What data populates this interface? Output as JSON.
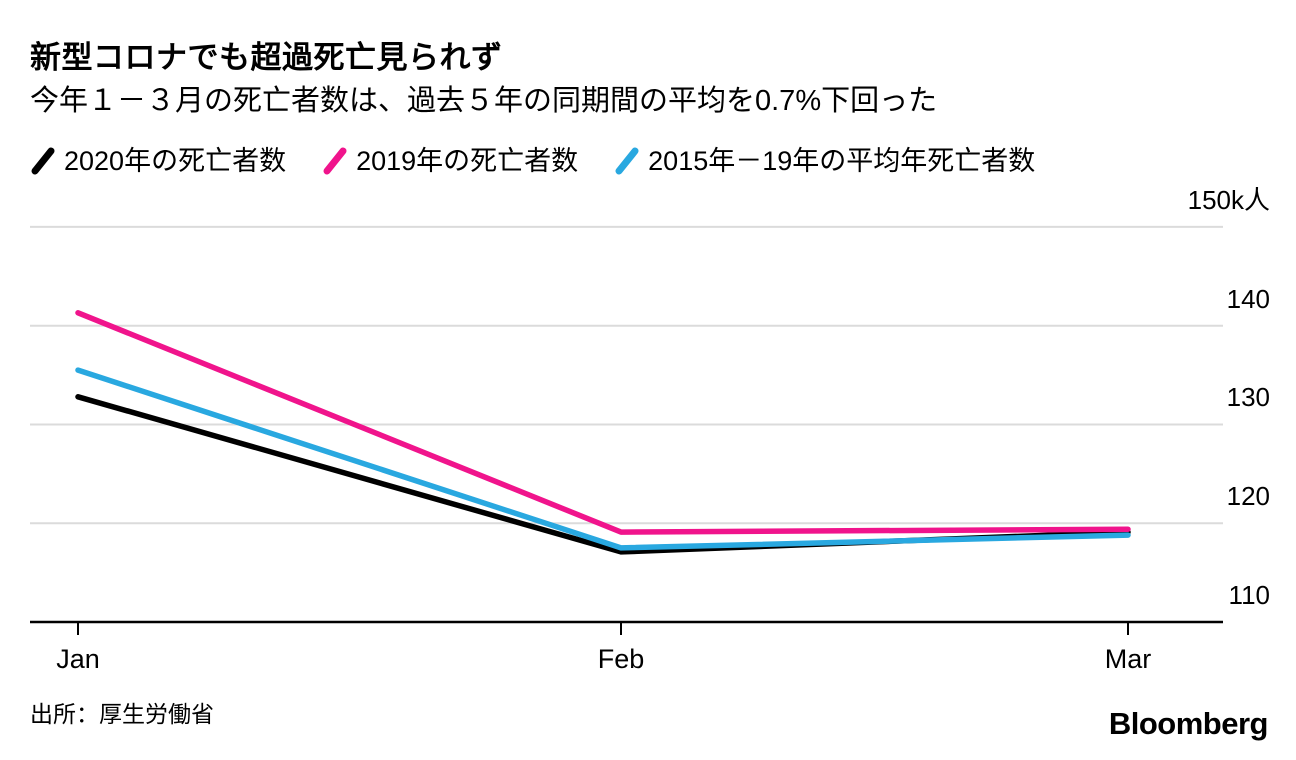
{
  "header": {
    "title": "新型コロナでも超過死亡見られず",
    "subtitle": "今年１－３月の死亡者数は、過去５年の同期間の平均を0.7%下回った"
  },
  "chart_data": {
    "type": "line",
    "title": "新型コロナでも超過死亡見られず",
    "subtitle": "今年１－３月の死亡者数は、過去５年の同期間の平均を0.7%下回った",
    "categories": [
      "Jan",
      "Feb",
      "Mar"
    ],
    "unit": "k人 (thousands of people)",
    "series": [
      {
        "name": "2020年の死亡者数",
        "color": "#000000",
        "values": [
          132.8,
          117.1,
          119.1
        ]
      },
      {
        "name": "2019年の死亡者数",
        "color": "#f0148c",
        "values": [
          141.3,
          119.1,
          119.4
        ]
      },
      {
        "name": "2015年－19年の平均年死亡者数",
        "color": "#29a8e0",
        "values": [
          135.5,
          117.5,
          118.8
        ]
      }
    ],
    "ylim": [
      110,
      150
    ],
    "yticks": [
      {
        "value": 150,
        "label": "150k人"
      },
      {
        "value": 140,
        "label": "140"
      },
      {
        "value": 130,
        "label": "130"
      },
      {
        "value": 120,
        "label": "120"
      },
      {
        "value": 110,
        "label": "110"
      }
    ],
    "grid": "horizontal",
    "gridline_color": "#dbdbdb",
    "axis_color": "#000000",
    "legend_position": "top"
  },
  "footer": {
    "source": "出所：厚生労働省",
    "logo": "Bloomberg"
  }
}
